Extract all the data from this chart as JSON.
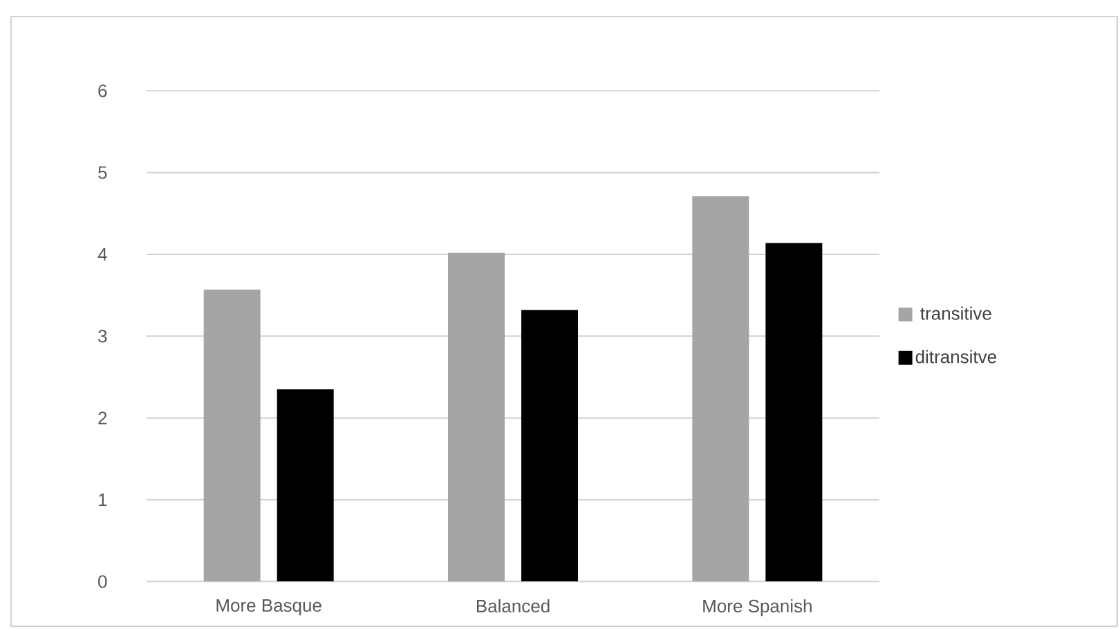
{
  "chart_data": {
    "type": "bar",
    "categories": [
      "More Basque",
      "Balanced",
      "More Spanish"
    ],
    "series": [
      {
        "name": "transitive",
        "color": "#a5a5a5",
        "values": [
          3.57,
          4.02,
          4.71
        ]
      },
      {
        "name": "ditransitve",
        "color": "#000000",
        "values": [
          2.35,
          3.32,
          4.14
        ]
      }
    ],
    "ylim": [
      0,
      6
    ],
    "yticks": [
      0,
      1,
      2,
      3,
      4,
      5,
      6
    ],
    "grid": "y",
    "legend": "right"
  }
}
